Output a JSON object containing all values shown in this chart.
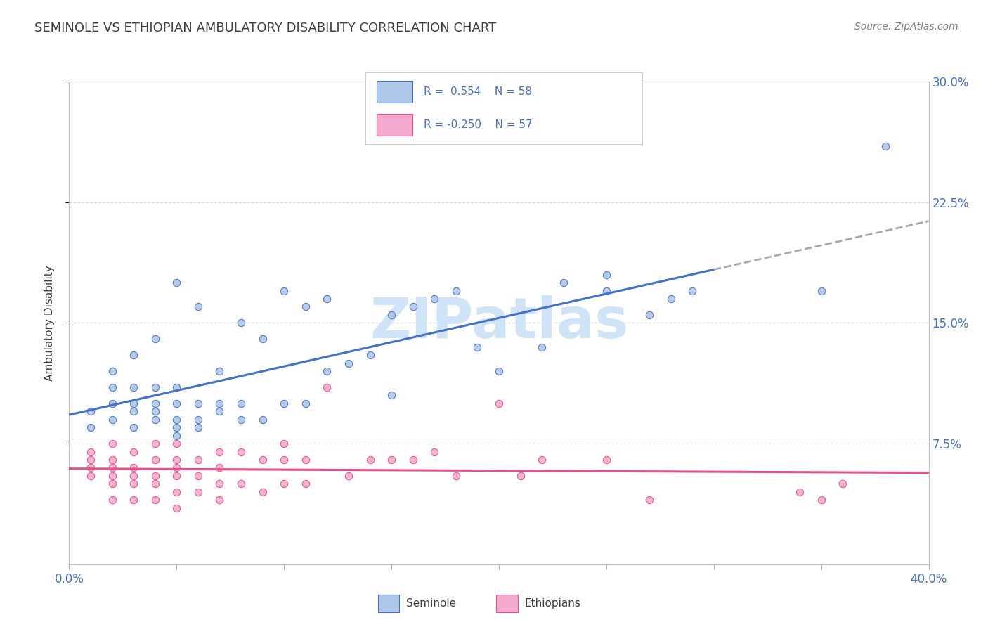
{
  "title": "SEMINOLE VS ETHIOPIAN AMBULATORY DISABILITY CORRELATION CHART",
  "source": "Source: ZipAtlas.com",
  "ylabel": "Ambulatory Disability",
  "xlim": [
    0.0,
    0.4
  ],
  "ylim": [
    0.0,
    0.3
  ],
  "yticks": [
    0.075,
    0.15,
    0.225,
    0.3
  ],
  "ytick_labels": [
    "7.5%",
    "15.0%",
    "22.5%",
    "30.0%"
  ],
  "xticks": [
    0.0,
    0.05,
    0.1,
    0.15,
    0.2,
    0.25,
    0.3,
    0.35,
    0.4
  ],
  "xtick_labels": [
    "0.0%",
    "",
    "",
    "",
    "",
    "",
    "",
    "",
    "40.0%"
  ],
  "seminole_R": 0.554,
  "seminole_N": 58,
  "ethiopian_R": -0.25,
  "ethiopian_N": 57,
  "blue_color": "#4472C4",
  "blue_fill": "#AEC6E8",
  "pink_color": "#E84F8C",
  "pink_fill": "#F4AACC",
  "title_color": "#404040",
  "axis_label_color": "#4472C4",
  "watermark_color": "#D0E4F7",
  "grid_color": "#DCDCDC",
  "seminole_x": [
    0.01,
    0.01,
    0.02,
    0.02,
    0.02,
    0.02,
    0.03,
    0.03,
    0.03,
    0.03,
    0.03,
    0.04,
    0.04,
    0.04,
    0.04,
    0.04,
    0.05,
    0.05,
    0.05,
    0.05,
    0.05,
    0.05,
    0.06,
    0.06,
    0.06,
    0.06,
    0.07,
    0.07,
    0.07,
    0.08,
    0.08,
    0.08,
    0.09,
    0.09,
    0.1,
    0.1,
    0.11,
    0.11,
    0.12,
    0.12,
    0.13,
    0.14,
    0.15,
    0.15,
    0.16,
    0.17,
    0.18,
    0.19,
    0.2,
    0.22,
    0.23,
    0.25,
    0.25,
    0.27,
    0.28,
    0.29,
    0.35,
    0.38
  ],
  "seminole_y": [
    0.085,
    0.095,
    0.09,
    0.1,
    0.11,
    0.12,
    0.085,
    0.095,
    0.1,
    0.11,
    0.13,
    0.09,
    0.095,
    0.1,
    0.11,
    0.14,
    0.08,
    0.085,
    0.09,
    0.1,
    0.11,
    0.175,
    0.085,
    0.09,
    0.1,
    0.16,
    0.095,
    0.1,
    0.12,
    0.09,
    0.1,
    0.15,
    0.09,
    0.14,
    0.1,
    0.17,
    0.1,
    0.16,
    0.12,
    0.165,
    0.125,
    0.13,
    0.105,
    0.155,
    0.16,
    0.165,
    0.17,
    0.135,
    0.12,
    0.135,
    0.175,
    0.17,
    0.18,
    0.155,
    0.165,
    0.17,
    0.17,
    0.26
  ],
  "ethiopian_x": [
    0.01,
    0.01,
    0.01,
    0.01,
    0.02,
    0.02,
    0.02,
    0.02,
    0.02,
    0.02,
    0.03,
    0.03,
    0.03,
    0.03,
    0.03,
    0.04,
    0.04,
    0.04,
    0.04,
    0.04,
    0.05,
    0.05,
    0.05,
    0.05,
    0.05,
    0.05,
    0.06,
    0.06,
    0.06,
    0.07,
    0.07,
    0.07,
    0.07,
    0.08,
    0.08,
    0.09,
    0.09,
    0.1,
    0.1,
    0.1,
    0.11,
    0.11,
    0.12,
    0.13,
    0.14,
    0.15,
    0.16,
    0.17,
    0.18,
    0.2,
    0.21,
    0.22,
    0.25,
    0.27,
    0.34,
    0.35,
    0.36
  ],
  "ethiopian_y": [
    0.055,
    0.06,
    0.065,
    0.07,
    0.04,
    0.05,
    0.055,
    0.06,
    0.065,
    0.075,
    0.04,
    0.05,
    0.055,
    0.06,
    0.07,
    0.04,
    0.05,
    0.055,
    0.065,
    0.075,
    0.035,
    0.045,
    0.055,
    0.06,
    0.065,
    0.075,
    0.045,
    0.055,
    0.065,
    0.04,
    0.05,
    0.06,
    0.07,
    0.05,
    0.07,
    0.045,
    0.065,
    0.05,
    0.065,
    0.075,
    0.05,
    0.065,
    0.11,
    0.055,
    0.065,
    0.065,
    0.065,
    0.07,
    0.055,
    0.1,
    0.055,
    0.065,
    0.065,
    0.04,
    0.045,
    0.04,
    0.05
  ]
}
